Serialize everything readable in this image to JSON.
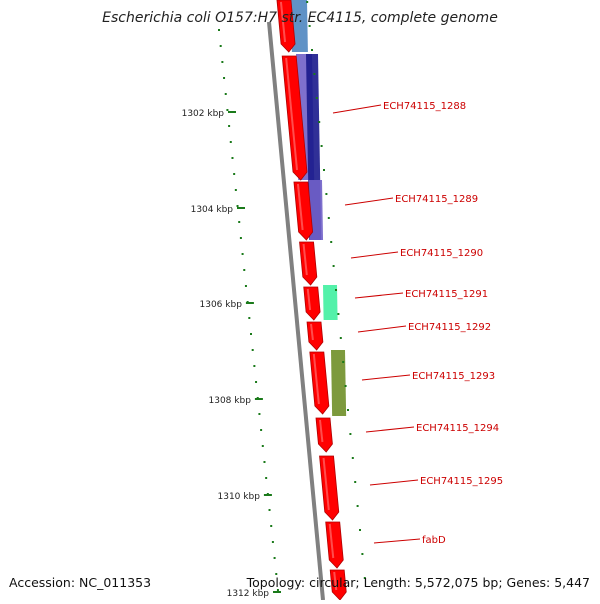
{
  "title": "Escherichia coli O157:H7 str. EC4115, complete genome",
  "footer": {
    "accession": "Accession: NC_011353",
    "summary": "Topology: circular; Length: 5,572,075 bp; Genes: 5,447"
  },
  "ticks": [
    {
      "label": "1302 kbp"
    },
    {
      "label": "1304 kbp"
    },
    {
      "label": "1306 kbp"
    },
    {
      "label": "1308 kbp"
    },
    {
      "label": "1310 kbp"
    },
    {
      "label": "1312 kbp"
    }
  ],
  "genes": [
    {
      "label": "ECH74115_1288"
    },
    {
      "label": "ECH74115_1289"
    },
    {
      "label": "ECH74115_1290"
    },
    {
      "label": "ECH74115_1291"
    },
    {
      "label": "ECH74115_1292"
    },
    {
      "label": "ECH74115_1293"
    },
    {
      "label": "ECH74115_1294"
    },
    {
      "label": "ECH74115_1295"
    },
    {
      "label": "fabD"
    }
  ],
  "colors": {
    "backbone": "#808080",
    "cds": "#ff0000",
    "label": "#cc0000",
    "tick": "#1a7a1a",
    "blast_blue": "#4f86c0",
    "blast_navy": "#1a1a8c",
    "blast_purple": "#7060c8",
    "blast_teal": "#40f0a0",
    "blast_olive": "#6f8f28"
  }
}
